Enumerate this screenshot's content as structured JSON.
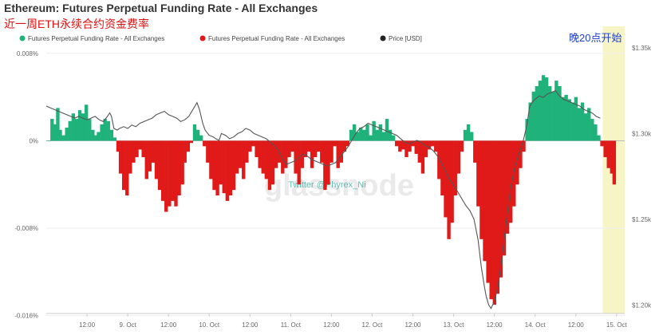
{
  "header": {
    "title": "Ethereum: Futures Perpetual Funding Rate - All Exchanges",
    "subtitle": "近一周ETH永续合约资金费率"
  },
  "legend": [
    {
      "label": "Futures Perpetual Funding Rate - All Exchanges",
      "color": "#1fb27a"
    },
    {
      "label": "Futures Perpetual Funding Rate - All Exchanges",
      "color": "#e01919"
    },
    {
      "label": "Price [USD]",
      "color": "#222222"
    }
  ],
  "annotation": {
    "text": "晚20点开始",
    "highlight_color": "#f7f5c6"
  },
  "watermark": {
    "main": "glassnode",
    "handle": "Twitter @Phyrex_Ni"
  },
  "colors": {
    "positive": "#1fb27a",
    "negative": "#e01919",
    "price": "#555555",
    "grid": "#eeeeee"
  },
  "chart_data": {
    "type": "bar",
    "title": "Ethereum: Futures Perpetual Funding Rate - All Exchanges",
    "x_ticks": [
      "12:00",
      "9. Oct",
      "12:00",
      "10. Oct",
      "12:00",
      "11. Oct",
      "12:00",
      "12. Oct",
      "12:00",
      "13. Oct",
      "12:00",
      "14. Oct",
      "12:00",
      "15. Oct"
    ],
    "x_range_days": [
      8.0,
      15.1
    ],
    "y_left_ticks": [
      "0.008%",
      "0%",
      "-0.008%",
      "-0.016%"
    ],
    "y_left_range": [
      -0.0158,
      0.0085
    ],
    "y_right_ticks": [
      "$1.35k",
      "$1.30k",
      "$1.25k",
      "$1.20k"
    ],
    "y_right_range": [
      1195,
      1350
    ],
    "highlight_start_day": 14.83,
    "funding_rate_pct": [
      [
        8.0,
        0.0
      ],
      [
        8.05,
        0.002
      ],
      [
        8.09,
        0.0015
      ],
      [
        8.12,
        0.003
      ],
      [
        8.16,
        0.001
      ],
      [
        8.19,
        0.0005
      ],
      [
        8.23,
        0.0012
      ],
      [
        8.27,
        0.0018
      ],
      [
        8.31,
        0.0025
      ],
      [
        8.35,
        0.002
      ],
      [
        8.39,
        0.0028
      ],
      [
        8.43,
        0.0025
      ],
      [
        8.47,
        0.0033
      ],
      [
        8.51,
        0.002
      ],
      [
        8.55,
        0.001
      ],
      [
        8.59,
        0.0005
      ],
      [
        8.62,
        0.0008
      ],
      [
        8.66,
        0.0015
      ],
      [
        8.7,
        0.002
      ],
      [
        8.74,
        0.0018
      ],
      [
        8.78,
        0.001
      ],
      [
        8.82,
        0.0003
      ],
      [
        8.86,
        -0.001
      ],
      [
        8.89,
        -0.003
      ],
      [
        8.93,
        -0.0045
      ],
      [
        8.97,
        -0.005
      ],
      [
        9.01,
        -0.003
      ],
      [
        9.05,
        -0.002
      ],
      [
        9.09,
        -0.0015
      ],
      [
        9.13,
        -0.0008
      ],
      [
        9.17,
        -0.0015
      ],
      [
        9.21,
        -0.0035
      ],
      [
        9.25,
        -0.0028
      ],
      [
        9.29,
        -0.002
      ],
      [
        9.33,
        -0.0035
      ],
      [
        9.37,
        -0.0045
      ],
      [
        9.41,
        -0.0055
      ],
      [
        9.45,
        -0.0065
      ],
      [
        9.49,
        -0.006
      ],
      [
        9.53,
        -0.0055
      ],
      [
        9.57,
        -0.006
      ],
      [
        9.61,
        -0.005
      ],
      [
        9.65,
        -0.004
      ],
      [
        9.69,
        -0.002
      ],
      [
        9.72,
        -0.001
      ],
      [
        9.76,
        -0.0002
      ],
      [
        9.8,
        0.0015
      ],
      [
        9.84,
        0.001
      ],
      [
        9.88,
        0.0005
      ],
      [
        9.92,
        -0.0005
      ],
      [
        9.96,
        -0.002
      ],
      [
        10.0,
        -0.0035
      ],
      [
        10.04,
        -0.0045
      ],
      [
        10.08,
        -0.005
      ],
      [
        10.12,
        -0.004
      ],
      [
        10.16,
        -0.0048
      ],
      [
        10.2,
        -0.0055
      ],
      [
        10.24,
        -0.005
      ],
      [
        10.28,
        -0.0045
      ],
      [
        10.32,
        -0.003
      ],
      [
        10.36,
        -0.0025
      ],
      [
        10.4,
        -0.0035
      ],
      [
        10.44,
        -0.002
      ],
      [
        10.48,
        -0.001
      ],
      [
        10.52,
        -0.0005
      ],
      [
        10.56,
        -0.0015
      ],
      [
        10.6,
        -0.0025
      ],
      [
        10.64,
        -0.003
      ],
      [
        10.68,
        -0.0035
      ],
      [
        10.72,
        -0.0045
      ],
      [
        10.76,
        -0.004
      ],
      [
        10.8,
        -0.0025
      ],
      [
        10.84,
        -0.002
      ],
      [
        10.88,
        -0.003
      ],
      [
        10.92,
        -0.0025
      ],
      [
        10.96,
        -0.0015
      ],
      [
        11.0,
        -0.001
      ],
      [
        11.04,
        -0.003
      ],
      [
        11.08,
        -0.004
      ],
      [
        11.12,
        -0.0025
      ],
      [
        11.16,
        -0.0015
      ],
      [
        11.2,
        -0.001
      ],
      [
        11.24,
        -0.0025
      ],
      [
        11.28,
        -0.0015
      ],
      [
        11.32,
        -0.001
      ],
      [
        11.36,
        -0.002
      ],
      [
        11.4,
        -0.0045
      ],
      [
        11.44,
        -0.004
      ],
      [
        11.48,
        -0.002
      ],
      [
        11.52,
        -0.0005
      ],
      [
        11.56,
        -0.0025
      ],
      [
        11.6,
        -0.002
      ],
      [
        11.64,
        -0.001
      ],
      [
        11.68,
        -0.0005
      ],
      [
        11.72,
        0.001
      ],
      [
        11.76,
        0.0015
      ],
      [
        11.8,
        0.0008
      ],
      [
        11.84,
        0.0012
      ],
      [
        11.88,
        0.001
      ],
      [
        11.92,
        0.0015
      ],
      [
        11.96,
        0.0005
      ],
      [
        12.0,
        0.0018
      ],
      [
        12.04,
        0.001
      ],
      [
        12.08,
        0.0015
      ],
      [
        12.12,
        0.0008
      ],
      [
        12.16,
        0.002
      ],
      [
        12.2,
        0.001
      ],
      [
        12.24,
        0.0005
      ],
      [
        12.28,
        -0.0005
      ],
      [
        12.32,
        -0.001
      ],
      [
        12.36,
        -0.0008
      ],
      [
        12.4,
        -0.0015
      ],
      [
        12.44,
        -0.001
      ],
      [
        12.48,
        -0.0005
      ],
      [
        12.52,
        -0.0012
      ],
      [
        12.56,
        -0.002
      ],
      [
        12.6,
        -0.003
      ],
      [
        12.64,
        -0.0015
      ],
      [
        12.68,
        -0.0008
      ],
      [
        12.72,
        -0.0005
      ],
      [
        12.76,
        -0.001
      ],
      [
        12.8,
        -0.0035
      ],
      [
        12.84,
        -0.005
      ],
      [
        12.88,
        -0.007
      ],
      [
        12.92,
        -0.009
      ],
      [
        12.96,
        -0.0075
      ],
      [
        13.0,
        -0.005
      ],
      [
        13.04,
        -0.003
      ],
      [
        13.08,
        -0.001
      ],
      [
        13.12,
        0.001
      ],
      [
        13.16,
        0.0015
      ],
      [
        13.2,
        0.0008
      ],
      [
        13.24,
        -0.002
      ],
      [
        13.28,
        -0.006
      ],
      [
        13.32,
        -0.009
      ],
      [
        13.36,
        -0.011
      ],
      [
        13.4,
        -0.013
      ],
      [
        13.44,
        -0.0145
      ],
      [
        13.48,
        -0.015
      ],
      [
        13.52,
        -0.014
      ],
      [
        13.56,
        -0.0125
      ],
      [
        13.6,
        -0.0105
      ],
      [
        13.64,
        -0.0085
      ],
      [
        13.68,
        -0.0075
      ],
      [
        13.72,
        -0.006
      ],
      [
        13.76,
        -0.004
      ],
      [
        13.8,
        -0.0025
      ],
      [
        13.84,
        -0.001
      ],
      [
        13.88,
        0.002
      ],
      [
        13.92,
        0.0035
      ],
      [
        13.96,
        0.0045
      ],
      [
        14.0,
        0.005
      ],
      [
        14.04,
        0.0055
      ],
      [
        14.08,
        0.006
      ],
      [
        14.12,
        0.0058
      ],
      [
        14.16,
        0.005
      ],
      [
        14.2,
        0.0045
      ],
      [
        14.24,
        0.0055
      ],
      [
        14.28,
        0.005
      ],
      [
        14.32,
        0.004
      ],
      [
        14.36,
        0.0042
      ],
      [
        14.4,
        0.0038
      ],
      [
        14.44,
        0.0035
      ],
      [
        14.48,
        0.004
      ],
      [
        14.52,
        0.003
      ],
      [
        14.56,
        0.0035
      ],
      [
        14.6,
        0.0025
      ],
      [
        14.64,
        0.003
      ],
      [
        14.68,
        0.002
      ],
      [
        14.72,
        0.0015
      ],
      [
        14.76,
        0.0005
      ],
      [
        14.8,
        -0.0005
      ],
      [
        14.84,
        -0.0015
      ],
      [
        14.88,
        -0.0025
      ],
      [
        14.92,
        -0.003
      ],
      [
        14.95,
        -0.004
      ]
    ],
    "price_usd": [
      [
        8.0,
        1316
      ],
      [
        8.05,
        1315
      ],
      [
        8.1,
        1314
      ],
      [
        8.15,
        1313
      ],
      [
        8.2,
        1312
      ],
      [
        8.25,
        1311
      ],
      [
        8.3,
        1310
      ],
      [
        8.35,
        1309
      ],
      [
        8.4,
        1310
      ],
      [
        8.45,
        1309
      ],
      [
        8.5,
        1308
      ],
      [
        8.55,
        1309
      ],
      [
        8.6,
        1310
      ],
      [
        8.65,
        1308
      ],
      [
        8.7,
        1307
      ],
      [
        8.75,
        1310
      ],
      [
        8.78,
        1312
      ],
      [
        8.8,
        1310
      ],
      [
        8.83,
        1303
      ],
      [
        8.87,
        1302
      ],
      [
        8.9,
        1303
      ],
      [
        8.95,
        1304
      ],
      [
        9.0,
        1303
      ],
      [
        9.05,
        1305
      ],
      [
        9.1,
        1304
      ],
      [
        9.15,
        1306
      ],
      [
        9.2,
        1307
      ],
      [
        9.25,
        1308
      ],
      [
        9.3,
        1309
      ],
      [
        9.35,
        1311
      ],
      [
        9.4,
        1312
      ],
      [
        9.45,
        1313
      ],
      [
        9.5,
        1311
      ],
      [
        9.55,
        1310
      ],
      [
        9.6,
        1309
      ],
      [
        9.65,
        1307
      ],
      [
        9.7,
        1308
      ],
      [
        9.75,
        1310
      ],
      [
        9.8,
        1314
      ],
      [
        9.85,
        1318
      ],
      [
        9.88,
        1314
      ],
      [
        9.92,
        1306
      ],
      [
        9.95,
        1302
      ],
      [
        10.0,
        1299
      ],
      [
        10.05,
        1298
      ],
      [
        10.08,
        1297
      ],
      [
        10.12,
        1296
      ],
      [
        10.15,
        1300
      ],
      [
        10.2,
        1299
      ],
      [
        10.25,
        1297
      ],
      [
        10.3,
        1298
      ],
      [
        10.35,
        1300
      ],
      [
        10.4,
        1301
      ],
      [
        10.45,
        1303
      ],
      [
        10.5,
        1302
      ],
      [
        10.55,
        1300
      ],
      [
        10.6,
        1299
      ],
      [
        10.65,
        1298
      ],
      [
        10.7,
        1297
      ],
      [
        10.75,
        1295
      ],
      [
        10.8,
        1293
      ],
      [
        10.85,
        1290
      ],
      [
        10.9,
        1285
      ],
      [
        10.95,
        1282
      ],
      [
        11.0,
        1283
      ],
      [
        11.05,
        1284
      ],
      [
        11.1,
        1286
      ],
      [
        11.15,
        1288
      ],
      [
        11.2,
        1287
      ],
      [
        11.25,
        1285
      ],
      [
        11.3,
        1284
      ],
      [
        11.35,
        1283
      ],
      [
        11.4,
        1282
      ],
      [
        11.45,
        1281
      ],
      [
        11.5,
        1282
      ],
      [
        11.55,
        1283
      ],
      [
        11.6,
        1286
      ],
      [
        11.65,
        1289
      ],
      [
        11.7,
        1292
      ],
      [
        11.75,
        1296
      ],
      [
        11.8,
        1300
      ],
      [
        11.85,
        1303
      ],
      [
        11.9,
        1304
      ],
      [
        11.95,
        1306
      ],
      [
        12.0,
        1305
      ],
      [
        12.05,
        1304
      ],
      [
        12.1,
        1303
      ],
      [
        12.15,
        1302
      ],
      [
        12.2,
        1301
      ],
      [
        12.25,
        1300
      ],
      [
        12.3,
        1299
      ],
      [
        12.35,
        1297
      ],
      [
        12.4,
        1295
      ],
      [
        12.45,
        1294
      ],
      [
        12.5,
        1295
      ],
      [
        12.55,
        1296
      ],
      [
        12.6,
        1295
      ],
      [
        12.65,
        1293
      ],
      [
        12.7,
        1292
      ],
      [
        12.75,
        1290
      ],
      [
        12.8,
        1287
      ],
      [
        12.85,
        1283
      ],
      [
        12.9,
        1278
      ],
      [
        12.95,
        1273
      ],
      [
        13.0,
        1270
      ],
      [
        13.05,
        1266
      ],
      [
        13.1,
        1262
      ],
      [
        13.15,
        1258
      ],
      [
        13.2,
        1255
      ],
      [
        13.25,
        1250
      ],
      [
        13.3,
        1238
      ],
      [
        13.34,
        1222
      ],
      [
        13.38,
        1210
      ],
      [
        13.4,
        1205
      ],
      [
        13.43,
        1200
      ],
      [
        13.46,
        1198
      ],
      [
        13.5,
        1202
      ],
      [
        13.55,
        1212
      ],
      [
        13.6,
        1230
      ],
      [
        13.65,
        1250
      ],
      [
        13.7,
        1268
      ],
      [
        13.75,
        1280
      ],
      [
        13.8,
        1288
      ],
      [
        13.85,
        1295
      ],
      [
        13.9,
        1305
      ],
      [
        13.93,
        1315
      ],
      [
        13.96,
        1318
      ],
      [
        14.0,
        1320
      ],
      [
        14.05,
        1322
      ],
      [
        14.1,
        1321
      ],
      [
        14.15,
        1323
      ],
      [
        14.2,
        1324
      ],
      [
        14.25,
        1325
      ],
      [
        14.3,
        1322
      ],
      [
        14.35,
        1320
      ],
      [
        14.4,
        1319
      ],
      [
        14.45,
        1318
      ],
      [
        14.5,
        1317
      ],
      [
        14.55,
        1316
      ],
      [
        14.6,
        1314
      ],
      [
        14.65,
        1313
      ],
      [
        14.7,
        1312
      ],
      [
        14.75,
        1310
      ],
      [
        14.8,
        1309
      ]
    ]
  }
}
